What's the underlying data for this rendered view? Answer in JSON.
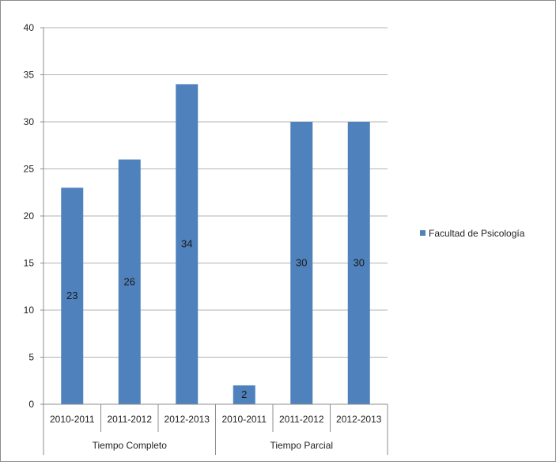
{
  "chart_data": {
    "type": "bar",
    "title": "",
    "xlabel": "",
    "ylabel": "",
    "ylim": [
      0,
      40
    ],
    "yticks": [
      0,
      5,
      10,
      15,
      20,
      25,
      30,
      35,
      40
    ],
    "grid": true,
    "legend_position": "right",
    "groups": [
      {
        "label": "Tiempo Completo",
        "categories": [
          "2010-2011",
          "2011-2012",
          "2012-2013"
        ]
      },
      {
        "label": "Tiempo Parcial",
        "categories": [
          "2010-2011",
          "2011-2012",
          "2012-2013"
        ]
      }
    ],
    "categories": [
      "2010-2011",
      "2011-2012",
      "2012-2013",
      "2010-2011",
      "2011-2012",
      "2012-2013"
    ],
    "series": [
      {
        "name": "Facultad de Psicología",
        "values": [
          23,
          26,
          34,
          2,
          30,
          30
        ],
        "color": "#4f81bd"
      }
    ]
  }
}
